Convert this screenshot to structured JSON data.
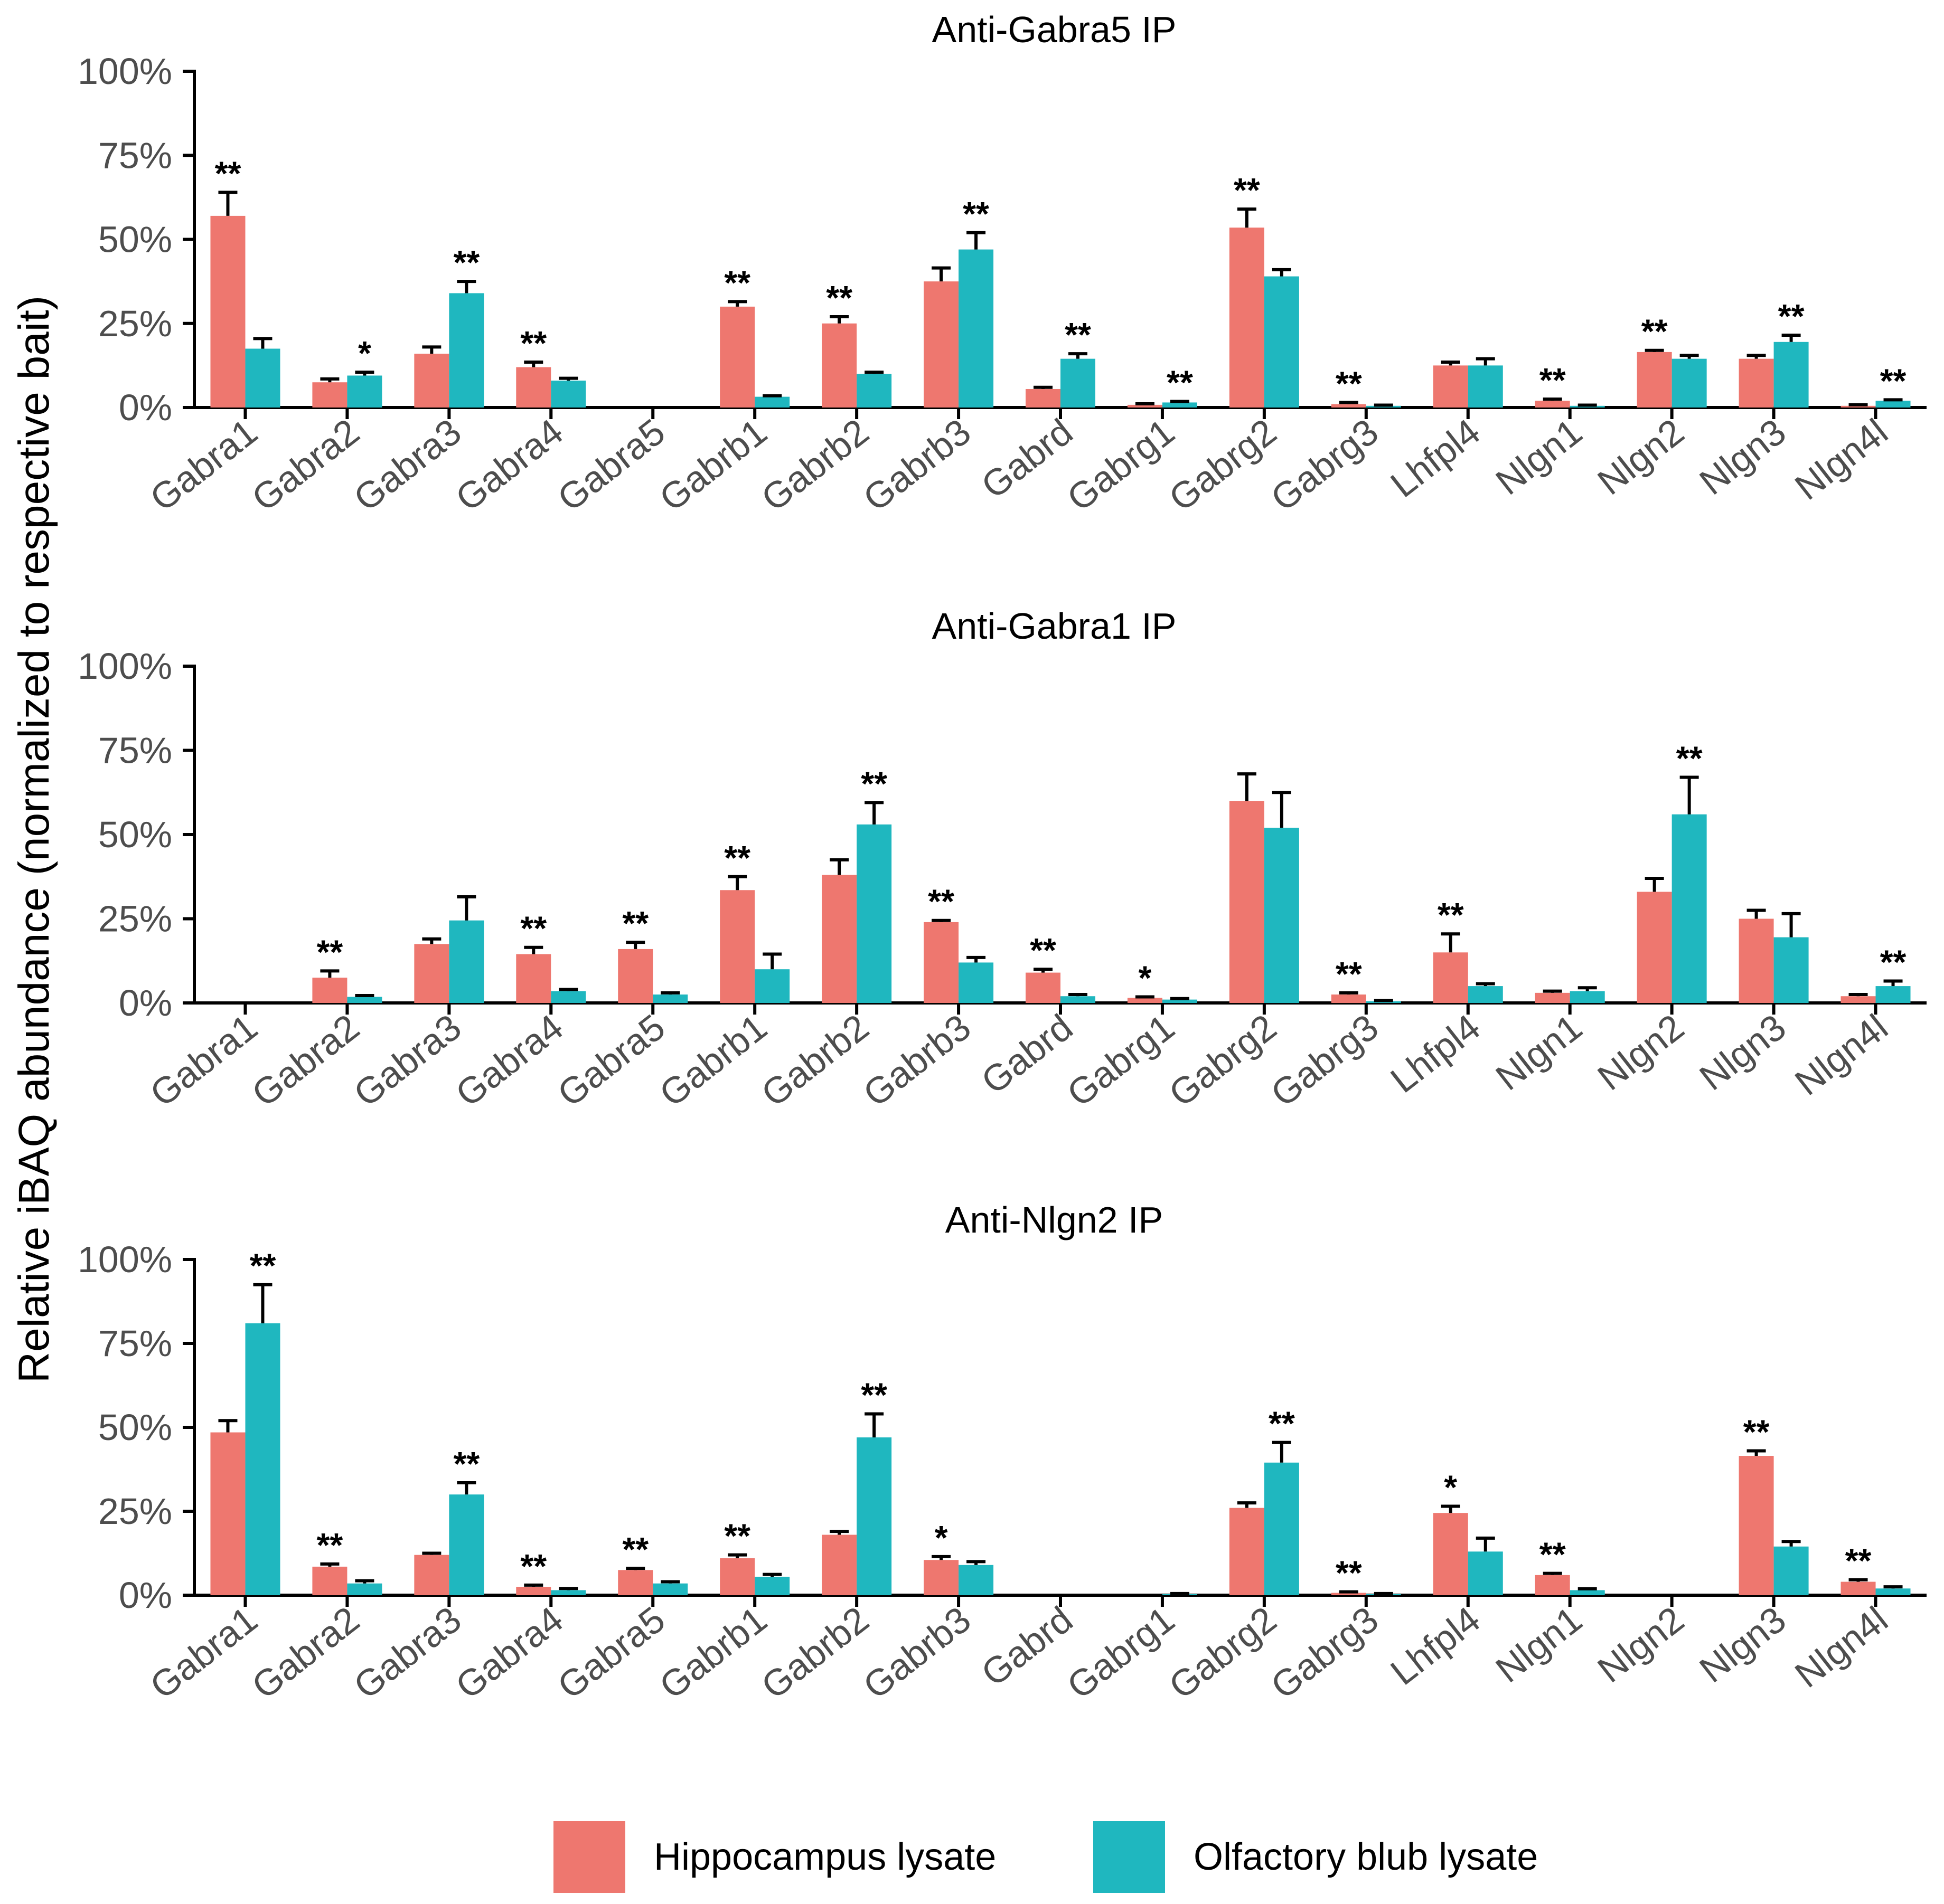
{
  "y_axis_label": "Relative iBAQ abundance (normalized to respective bait)",
  "legend": {
    "position": "bottom",
    "entries": [
      {
        "label": "Hippocampus lysate",
        "color": "#EE776F"
      },
      {
        "label": "Olfactory blub lysate",
        "color": "#1FB7BF"
      }
    ]
  },
  "chart_data": [
    {
      "type": "bar",
      "title": "Anti-Gabra5 IP",
      "categories": [
        "Gabra1",
        "Gabra2",
        "Gabra3",
        "Gabra4",
        "Gabra5",
        "Gabrb1",
        "Gabrb2",
        "Gabrb3",
        "Gabrd",
        "Gabrg1",
        "Gabrg2",
        "Gabrg3",
        "Lhfpl4",
        "Nlgn1",
        "Nlgn2",
        "Nlgn3",
        "Nlgn4l"
      ],
      "ylim": [
        0,
        100
      ],
      "yticks": [
        "0%",
        "25%",
        "50%",
        "75%",
        "100%"
      ],
      "series": [
        {
          "name": "Hippocampus lysate",
          "values": [
            57,
            7.5,
            16,
            12,
            null,
            30,
            25,
            37.5,
            5.5,
            0.8,
            53.5,
            1,
            12.5,
            2,
            16.5,
            14.5,
            0.5
          ],
          "errors": [
            7,
            1,
            2,
            1.5,
            null,
            1.5,
            2,
            4,
            0.5,
            0.3,
            5.5,
            0.5,
            1,
            0.5,
            0.5,
            1,
            0.3
          ]
        },
        {
          "name": "Olfactory blub lysate",
          "values": [
            17.5,
            9.5,
            34,
            8,
            null,
            3.2,
            10,
            47,
            14.5,
            1.5,
            39,
            0.5,
            12.5,
            0.5,
            14.5,
            19.5,
            2
          ],
          "errors": [
            3,
            1,
            3.5,
            0.7,
            null,
            0.3,
            0.5,
            5,
            1.5,
            0.3,
            2,
            0.2,
            2,
            0.2,
            1,
            2,
            0.3
          ]
        }
      ],
      "significance": [
        "**",
        "*",
        "**",
        "**",
        "",
        "**",
        "**",
        "**",
        "**",
        "**",
        "**",
        "**",
        "",
        "**",
        "**",
        "**",
        "**"
      ]
    },
    {
      "type": "bar",
      "title": "Anti-Gabra1 IP",
      "categories": [
        "Gabra1",
        "Gabra2",
        "Gabra3",
        "Gabra4",
        "Gabra5",
        "Gabrb1",
        "Gabrb2",
        "Gabrb3",
        "Gabrd",
        "Gabrg1",
        "Gabrg2",
        "Gabrg3",
        "Lhfpl4",
        "Nlgn1",
        "Nlgn2",
        "Nlgn3",
        "Nlgn4l"
      ],
      "ylim": [
        0,
        100
      ],
      "yticks": [
        "0%",
        "25%",
        "50%",
        "75%",
        "100%"
      ],
      "series": [
        {
          "name": "Hippocampus lysate",
          "values": [
            null,
            7.5,
            17.5,
            14.5,
            16,
            33.5,
            38,
            24,
            9,
            1.5,
            60,
            2.5,
            15,
            3,
            33,
            25,
            2
          ],
          "errors": [
            null,
            2,
            1.5,
            2,
            2,
            4,
            4.5,
            0.5,
            1,
            0.3,
            8,
            0.5,
            5.5,
            0.5,
            4,
            2.5,
            0.5
          ]
        },
        {
          "name": "Olfactory blub lysate",
          "values": [
            null,
            1.8,
            24.5,
            3.5,
            2.5,
            10,
            53,
            12,
            2,
            1,
            52,
            0.5,
            5,
            3.5,
            56,
            19.5,
            5
          ],
          "errors": [
            null,
            0.4,
            7,
            0.5,
            0.5,
            4.5,
            6.5,
            1.5,
            0.5,
            0.3,
            10.5,
            0.2,
            0.7,
            1,
            11,
            7,
            1.5
          ]
        }
      ],
      "significance": [
        "",
        "**",
        "",
        "**",
        "**",
        "**",
        "**",
        "**",
        "**",
        "*",
        "",
        "**",
        "**",
        "",
        "**",
        "",
        "**"
      ]
    },
    {
      "type": "bar",
      "title": "Anti-Nlgn2 IP",
      "categories": [
        "Gabra1",
        "Gabra2",
        "Gabra3",
        "Gabra4",
        "Gabra5",
        "Gabrb1",
        "Gabrb2",
        "Gabrb3",
        "Gabrd",
        "Gabrg1",
        "Gabrg2",
        "Gabrg3",
        "Lhfpl4",
        "Nlgn1",
        "Nlgn2",
        "Nlgn3",
        "Nlgn4l"
      ],
      "ylim": [
        0,
        100
      ],
      "yticks": [
        "0%",
        "25%",
        "50%",
        "75%",
        "100%"
      ],
      "series": [
        {
          "name": "Hippocampus lysate",
          "values": [
            48.5,
            8.5,
            12,
            2.5,
            7.5,
            11,
            18,
            10.5,
            null,
            null,
            26,
            0.7,
            24.5,
            6,
            null,
            41.5,
            4
          ],
          "errors": [
            3.5,
            0.8,
            0.5,
            0.5,
            0.5,
            1,
            1,
            1,
            null,
            null,
            1.5,
            0.3,
            2,
            0.5,
            null,
            1.5,
            0.6
          ]
        },
        {
          "name": "Olfactory blub lysate",
          "values": [
            81,
            3.5,
            30,
            1.5,
            3.5,
            5.5,
            47,
            9,
            null,
            0.3,
            39.5,
            0.3,
            13,
            1.5,
            null,
            14.5,
            2
          ],
          "errors": [
            11.5,
            0.8,
            3.5,
            0.5,
            0.5,
            0.7,
            7,
            1,
            null,
            0.2,
            6,
            0.2,
            4,
            0.4,
            null,
            1.5,
            0.5
          ]
        }
      ],
      "significance": [
        "**",
        "**",
        "**",
        "**",
        "**",
        "**",
        "**",
        "*",
        "",
        "",
        "**",
        "**",
        "*",
        "**",
        "",
        "**",
        "**"
      ]
    }
  ]
}
